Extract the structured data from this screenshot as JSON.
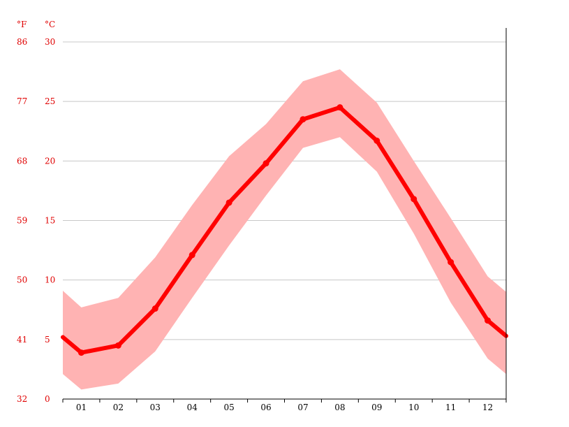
{
  "chart_data": {
    "type": "line",
    "x": [
      "01",
      "02",
      "03",
      "04",
      "05",
      "06",
      "07",
      "08",
      "09",
      "10",
      "11",
      "12"
    ],
    "units": {
      "left": "°F",
      "right": "°C"
    },
    "yticks_c": [
      "30",
      "25",
      "20",
      "15",
      "10",
      "5",
      "0"
    ],
    "yticks_f": [
      "86",
      "77",
      "68",
      "59",
      "50",
      "41",
      "32"
    ],
    "ylim": [
      0,
      30
    ],
    "grid": true,
    "series": [
      {
        "values": [
          3.9,
          4.5,
          7.6,
          12.1,
          16.5,
          19.8,
          23.5,
          24.5,
          21.7,
          16.8,
          11.5,
          6.6
        ]
      }
    ],
    "band": {
      "upper": [
        7.7,
        8.5,
        11.9,
        16.3,
        20.4,
        23.1,
        26.7,
        27.7,
        24.9,
        20.0,
        15.2,
        10.3
      ],
      "lower": [
        0.8,
        1.3,
        4.0,
        8.5,
        12.9,
        17.1,
        21.1,
        22.0,
        19.1,
        13.9,
        8.1,
        3.4
      ]
    },
    "edge": {
      "start": {
        "mid": 5.2,
        "upper": 9.1,
        "lower": 2.1
      },
      "end": {
        "mid": 5.3,
        "upper": 9.0,
        "lower": 2.1
      }
    },
    "colors": {
      "line": "#ff0000",
      "band": "#ffb3b3",
      "text": "#e00000",
      "grid": "#c8c8c8"
    }
  }
}
